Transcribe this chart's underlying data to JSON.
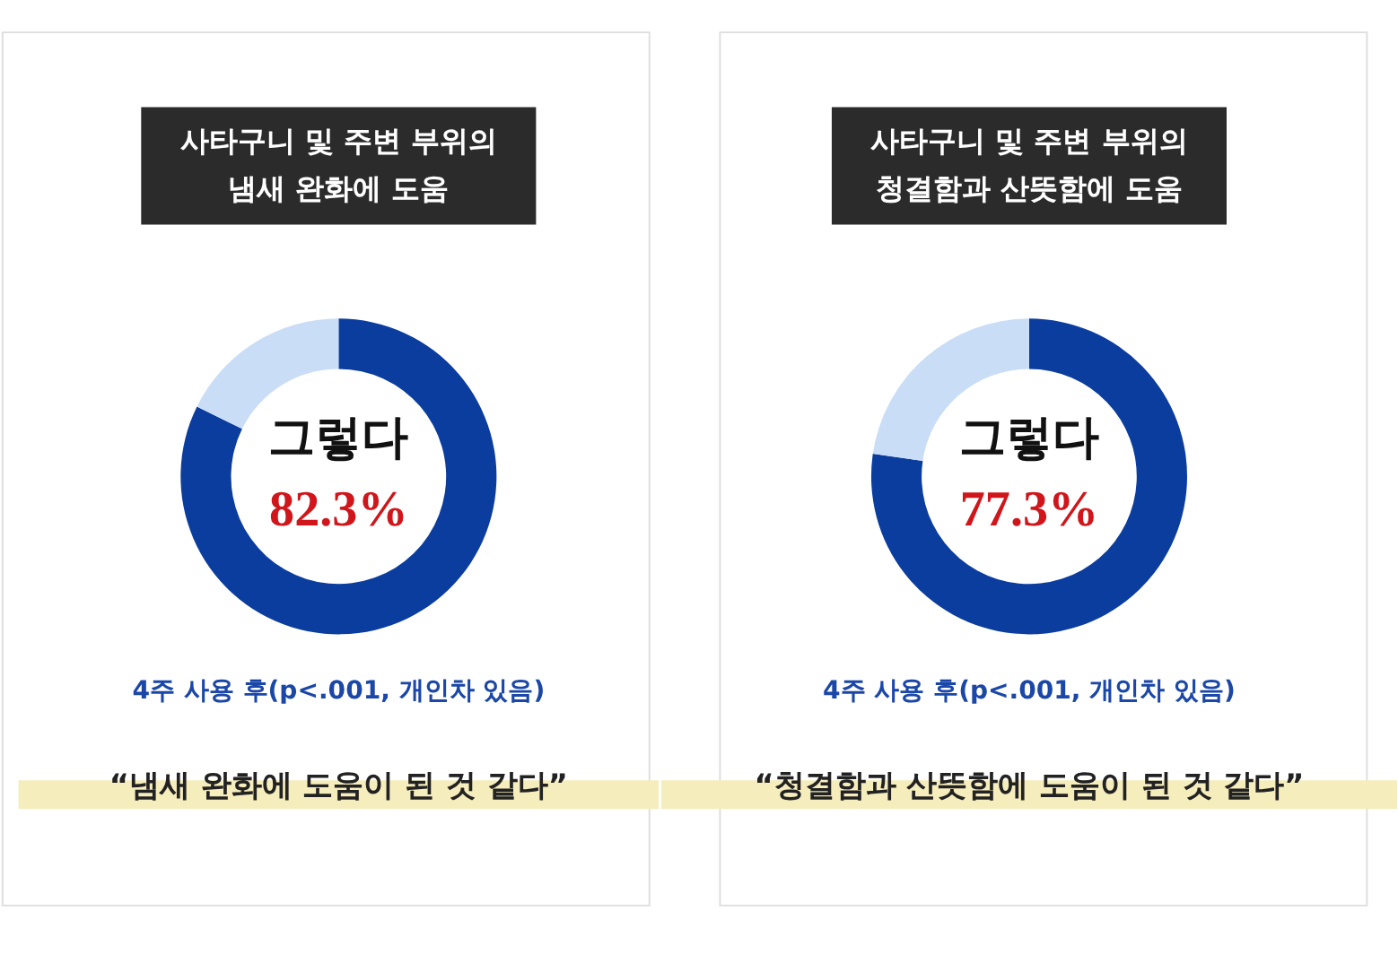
{
  "chart_data": [
    {
      "type": "donut",
      "title": "사타구니 및 주변 부위의\n냄새 완화에 도움",
      "categories": [
        "그렇다",
        null
      ],
      "values": [
        82.3,
        17.7
      ],
      "colors": [
        "#0b3d9e",
        "#c9ddf6"
      ],
      "value_labels": [
        "82.3%",
        null
      ],
      "annotations": [
        "4주 사용 후(p<.001, 개인차 있음)",
        "“냄새 완화에 도움이 된 것 같다”"
      ]
    },
    {
      "type": "donut",
      "title": "사타구니 및 주변 부위의\n청결함과 산뜻함에 도움",
      "categories": [
        "그렇다",
        null
      ],
      "values": [
        77.3,
        22.7
      ],
      "colors": [
        "#0b3d9e",
        "#c9ddf6"
      ],
      "value_labels": [
        "77.3%",
        null
      ],
      "annotations": [
        "4주 사용 후(p<.001, 개인차 있음)",
        "“청결함과 산뜻함에 도움이 된 것 같다”"
      ]
    }
  ]
}
